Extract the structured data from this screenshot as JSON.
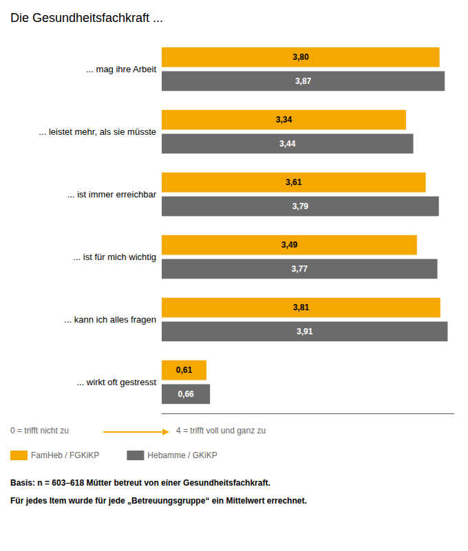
{
  "chart_data": {
    "type": "bar",
    "orientation": "horizontal",
    "title": "Die Gesundheitsfachkraft ...",
    "categories": [
      "... mag ihre Arbeit",
      "... leistet mehr, als sie müsste",
      "... ist immer erreichbar",
      "... ist für mich wichtig",
      "... kann ich alles fragen",
      "... wirkt oft gestresst"
    ],
    "series": [
      {
        "name": "FamHeb / FGKiKP",
        "color": "#F5A800",
        "values": [
          3.8,
          3.34,
          3.61,
          3.49,
          3.81,
          0.61
        ],
        "value_labels": [
          "3,80",
          "3,34",
          "3,61",
          "3,49",
          "3,81",
          "0,61"
        ]
      },
      {
        "name": "Hebamme / GKiKP",
        "color": "#6B6B6B",
        "values": [
          3.87,
          3.44,
          3.79,
          3.77,
          3.91,
          0.66
        ],
        "value_labels": [
          "3,87",
          "3,44",
          "3,79",
          "3,77",
          "3,91",
          "0,66"
        ]
      }
    ],
    "xlim": [
      0,
      4.0
    ],
    "tick_labels": "y",
    "data_labels": true,
    "grid": false,
    "legend": "bottom",
    "annotations": [
      "0 = trifft nicht zu",
      "4 = trifft voll und ganz zu",
      "Basis: n = 603–618 Mütter betreut von einer Gesundheitsfachkraft.",
      "Für jedes Item wurde für jede „Betreuungsgruppe“ ein Mittelwert errechnet."
    ]
  }
}
